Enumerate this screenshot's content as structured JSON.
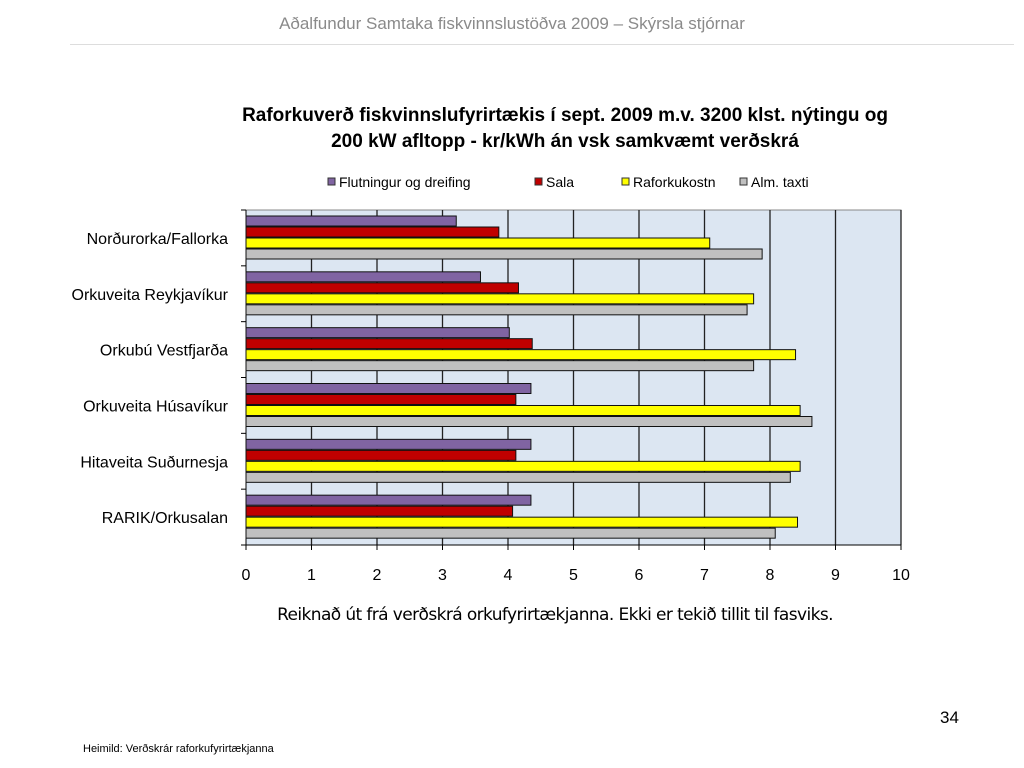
{
  "header": {
    "title": "Aðalfundur Samtaka fiskvinnslustöðva 2009 – Skýrsla stjórnar"
  },
  "note": "Reiknað út frá verðskrá orkufyrirtækjanna.  Ekki er tekið tillit til fasviks.",
  "page_number": "34",
  "source": "Heimild: Verðskrár raforkufyrirtækjanna",
  "chart_data": {
    "type": "bar",
    "orientation": "horizontal",
    "title_line1": "Raforkuverð fiskvinnslufyrirtækis  í sept. 2009  m.v. 3200 klst. nýtingu og",
    "title_line2": "200 kW afltopp - kr/kWh án vsk samkvæmt  verðskrá",
    "categories": [
      "Norðurorka/Fallorka",
      "Orkuveita Reykjavíkur",
      "Orkubú Vestfjarða",
      "Orkuveita Húsavíkur",
      "Hitaveita Suðurnesja",
      "RARIK/Orkusalan"
    ],
    "series": [
      {
        "name": "Flutningur og dreifing",
        "color": "#8064a2",
        "values": [
          3.21,
          3.58,
          4.02,
          4.35,
          4.35,
          4.35
        ]
      },
      {
        "name": "Sala",
        "color": "#c00000",
        "values": [
          3.86,
          4.16,
          4.37,
          4.12,
          4.12,
          4.07
        ]
      },
      {
        "name": "Raforkukostn",
        "color": "#ffff00",
        "values": [
          7.08,
          7.75,
          8.39,
          8.46,
          8.46,
          8.42
        ]
      },
      {
        "name": "Alm. taxti",
        "color": "#c0c0c0",
        "values": [
          7.88,
          7.65,
          7.75,
          8.64,
          8.31,
          8.08
        ]
      }
    ],
    "xlim": [
      0,
      10
    ],
    "xticks": [
      "0",
      "1",
      "2",
      "3",
      "4",
      "5",
      "6",
      "7",
      "8",
      "9",
      "10"
    ],
    "grid": "vertical",
    "legend": "top",
    "plot_background": "#dce6f2"
  }
}
